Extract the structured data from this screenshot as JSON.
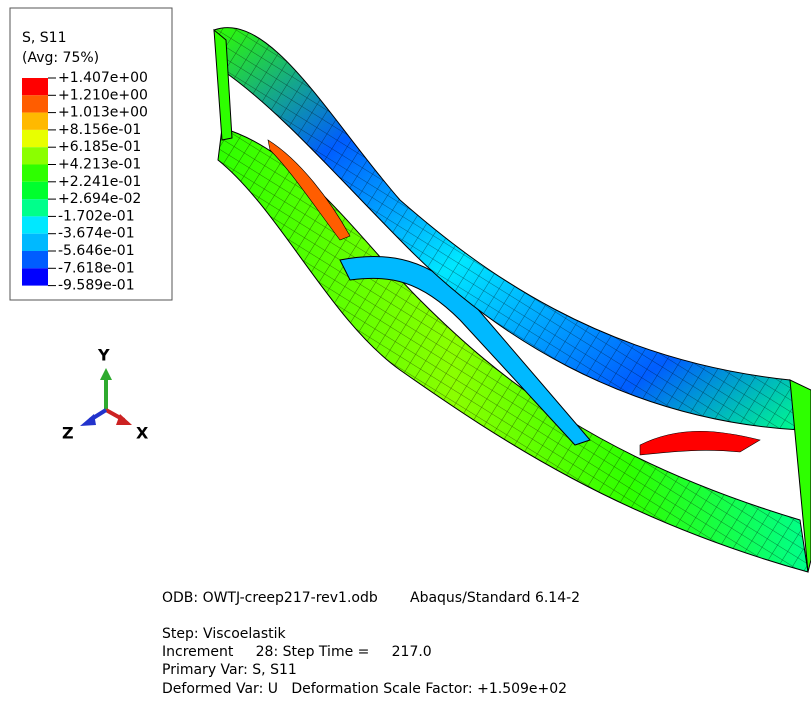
{
  "legend": {
    "title": "S, S11",
    "subtitle": "(Avg: 75%)",
    "labels": [
      "+1.407e+00",
      "+1.210e+00",
      "+1.013e+00",
      "+8.156e-01",
      "+6.185e-01",
      "+4.213e-01",
      "+2.241e-01",
      "+2.694e-02",
      "-1.702e-01",
      "-3.674e-01",
      "-5.646e-01",
      "-7.618e-01",
      "-9.589e-01"
    ],
    "colors": [
      "#ff0000",
      "#ff5d00",
      "#ffb900",
      "#e8ff00",
      "#8bff00",
      "#2eff00",
      "#00ff2e",
      "#00ff8b",
      "#00e8ff",
      "#00b9ff",
      "#005dff",
      "#0000ff"
    ]
  },
  "triad": {
    "y": "Y",
    "x": "X",
    "z": "Z"
  },
  "info": {
    "odb": "ODB: OWTJ-creep217-rev1.odb",
    "solver": "Abaqus/Standard 6.14-2",
    "step": "Step: Viscoelastik",
    "increment": "Increment     28: Step Time =     217.0",
    "primary_var": "Primary Var: S, S11",
    "deformed_var": "Deformed Var: U   Deformation Scale Factor: +1.509e+02"
  }
}
